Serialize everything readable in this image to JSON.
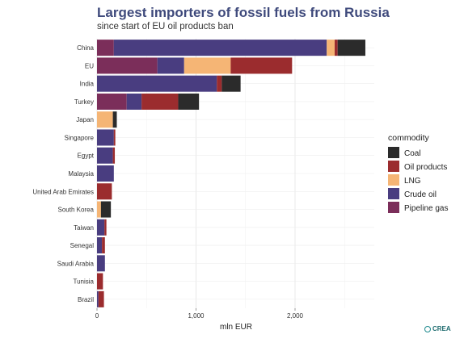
{
  "chart_data": {
    "type": "bar",
    "orientation": "horizontal",
    "stacked": true,
    "title": "Largest importers of fossil fuels from Russia",
    "subtitle": "since start of EU oil products ban",
    "xlabel": "mln EUR",
    "ylabel": "",
    "xlim": [
      0,
      2800
    ],
    "xticks": [
      0,
      1000,
      2000
    ],
    "xtick_labels": [
      "0",
      "1,000",
      "2,000"
    ],
    "grid": true,
    "legend_position": "right",
    "legend_title": "commodity",
    "categories": [
      "China",
      "EU",
      "India",
      "Turkey",
      "Japan",
      "Singapore",
      "Egypt",
      "Malaysia",
      "United Arab Emirates",
      "South Korea",
      "Taiwan",
      "Senegal",
      "Saudi Arabia",
      "Tunisia",
      "Brazil"
    ],
    "stack_order": [
      "Pipeline gas",
      "Crude oil",
      "LNG",
      "Oil products",
      "Coal"
    ],
    "series": [
      {
        "name": "Coal",
        "color": "#2b2b2b",
        "values": [
          280,
          0,
          190,
          210,
          40,
          0,
          0,
          0,
          0,
          100,
          0,
          0,
          0,
          0,
          0
        ]
      },
      {
        "name": "Oil products",
        "color": "#9b2c2e",
        "values": [
          30,
          620,
          50,
          370,
          0,
          15,
          20,
          0,
          150,
          0,
          20,
          30,
          0,
          60,
          55
        ]
      },
      {
        "name": "LNG",
        "color": "#f5b575",
        "values": [
          80,
          470,
          0,
          0,
          160,
          0,
          0,
          0,
          0,
          40,
          0,
          0,
          0,
          0,
          0
        ]
      },
      {
        "name": "Crude oil",
        "color": "#493d80",
        "values": [
          2150,
          270,
          1210,
          150,
          0,
          170,
          160,
          170,
          0,
          0,
          75,
          50,
          80,
          0,
          15
        ]
      },
      {
        "name": "Pipeline gas",
        "color": "#7b2e5a",
        "values": [
          170,
          610,
          0,
          300,
          0,
          0,
          0,
          0,
          0,
          0,
          0,
          0,
          0,
          0,
          0
        ]
      }
    ]
  },
  "branding": {
    "label": "CREA",
    "icon": "crea-logo-icon"
  }
}
